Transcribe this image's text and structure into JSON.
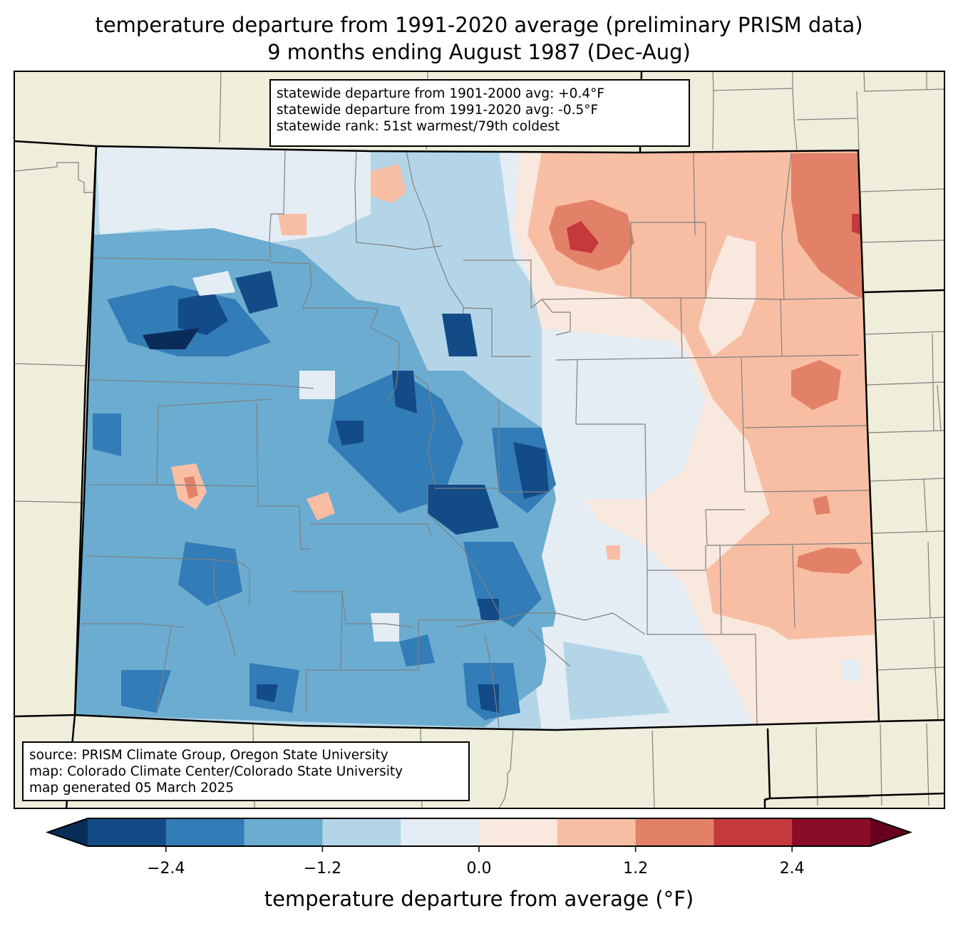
{
  "title": {
    "line1": "temperature departure from 1991-2020 average (preliminary PRISM data)",
    "line2": "9 months ending August 1987 (Dec-Aug)"
  },
  "stats_box": {
    "line1": "statewide departure from 1901-2000 avg: +0.4°F",
    "line2": "statewide departure from 1991-2020 avg: -0.5°F",
    "line3": "statewide rank: 51st warmest/79th coldest"
  },
  "source_box": {
    "line1": "source: PRISM Climate Group, Oregon State University",
    "line2": "map: Colorado Climate Center/Colorado State University",
    "line3": "map generated 05 March 2025"
  },
  "colorbar": {
    "label": "temperature departure from average (°F)",
    "bounds": [
      -3.0,
      -2.4,
      -1.8,
      -1.2,
      -0.6,
      0.0,
      0.6,
      1.2,
      1.8,
      2.4,
      3.0
    ],
    "colors": [
      "#134b87",
      "#327cb7",
      "#6bacd0",
      "#b3d5e7",
      "#e4edf4",
      "#f9e8de",
      "#f8bea4",
      "#e38168",
      "#c4393c",
      "#8a0c27"
    ],
    "under_color": "#092c58",
    "over_color": "#67001f",
    "ticks": [
      {
        "value": -2.4,
        "label": "−2.4"
      },
      {
        "value": -1.2,
        "label": "−1.2"
      },
      {
        "value": 0.0,
        "label": "0.0"
      },
      {
        "value": 1.2,
        "label": "1.2"
      },
      {
        "value": 2.4,
        "label": "2.4"
      }
    ]
  },
  "map_colors": {
    "land": "#efeedb",
    "county_border": "#808080",
    "state_border": "#000000"
  }
}
